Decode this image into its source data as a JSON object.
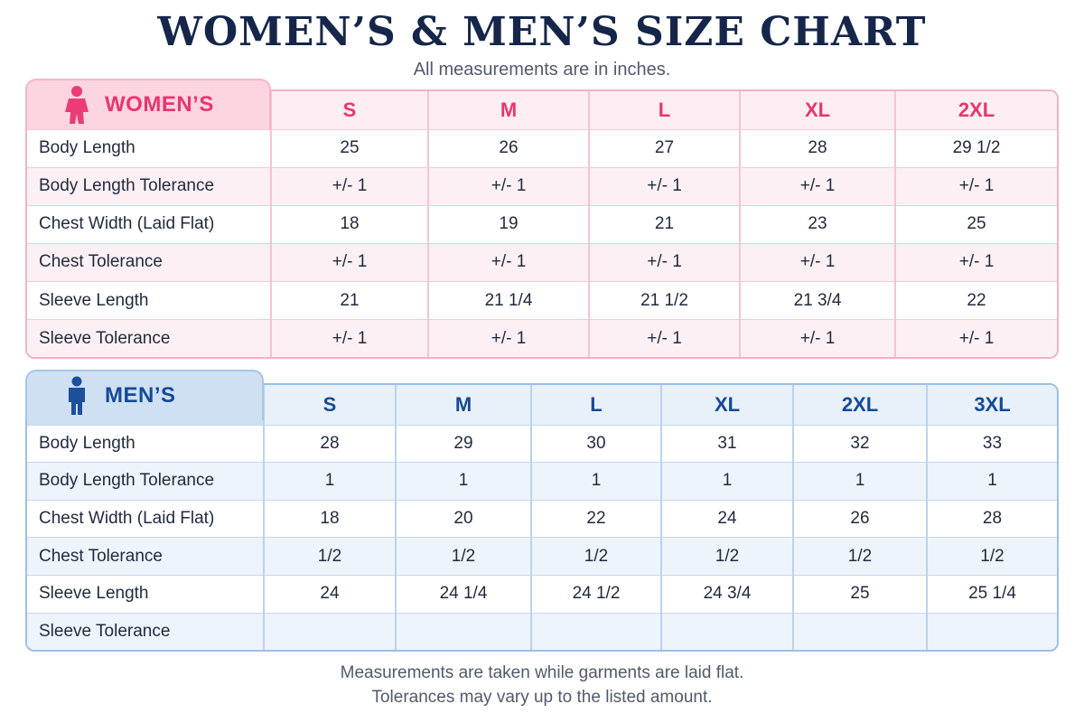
{
  "title": "WOMEN’S & MEN’S SIZE CHART",
  "subtitle": "All measurements are in inches.",
  "women": {
    "label": "WOMEN’S",
    "icon": "woman-icon",
    "accent": "#e8356f",
    "sizes": [
      "S",
      "M",
      "L",
      "XL",
      "2XL"
    ],
    "rows": [
      {
        "label": "Body Length",
        "values": [
          "25",
          "26",
          "27",
          "28",
          "29 1/2"
        ]
      },
      {
        "label": "Body Length Tolerance",
        "values": [
          "+/- 1",
          "+/- 1",
          "+/- 1",
          "+/- 1",
          "+/- 1"
        ]
      },
      {
        "label": "Chest Width (Laid Flat)",
        "values": [
          "18",
          "19",
          "21",
          "23",
          "25"
        ]
      },
      {
        "label": "Chest Tolerance",
        "values": [
          "+/- 1",
          "+/- 1",
          "+/- 1",
          "+/- 1",
          "+/- 1"
        ]
      },
      {
        "label": "Sleeve Length",
        "values": [
          "21",
          "21 1/4",
          "21 1/2",
          "21 3/4",
          "22"
        ]
      },
      {
        "label": "Sleeve Tolerance",
        "values": [
          "+/- 1",
          "+/- 1",
          "+/- 1",
          "+/- 1",
          "+/- 1"
        ]
      }
    ]
  },
  "men": {
    "label": "MEN’S",
    "icon": "man-icon",
    "accent": "#154a97",
    "sizes": [
      "S",
      "M",
      "L",
      "XL",
      "2XL",
      "3XL"
    ],
    "rows": [
      {
        "label": "Body Length",
        "values": [
          "28",
          "29",
          "30",
          "31",
          "32",
          "33"
        ]
      },
      {
        "label": "Body Length Tolerance",
        "values": [
          "1",
          "1",
          "1",
          "1",
          "1",
          "1"
        ]
      },
      {
        "label": "Chest Width (Laid Flat)",
        "values": [
          "18",
          "20",
          "22",
          "24",
          "26",
          "28"
        ]
      },
      {
        "label": "Chest Tolerance",
        "values": [
          "1/2",
          "1/2",
          "1/2",
          "1/2",
          "1/2",
          "1/2"
        ]
      },
      {
        "label": "Sleeve Length",
        "values": [
          "24",
          "24 1/4",
          "24 1/2",
          "24 3/4",
          "25",
          "25 1/4"
        ]
      },
      {
        "label": "Sleeve Tolerance",
        "values": [
          "",
          "",
          "",
          "",
          "",
          ""
        ]
      }
    ]
  },
  "footer": {
    "line1": "Measurements are taken while garments are laid flat.",
    "line2": "Tolerances may vary up to the listed amount."
  }
}
